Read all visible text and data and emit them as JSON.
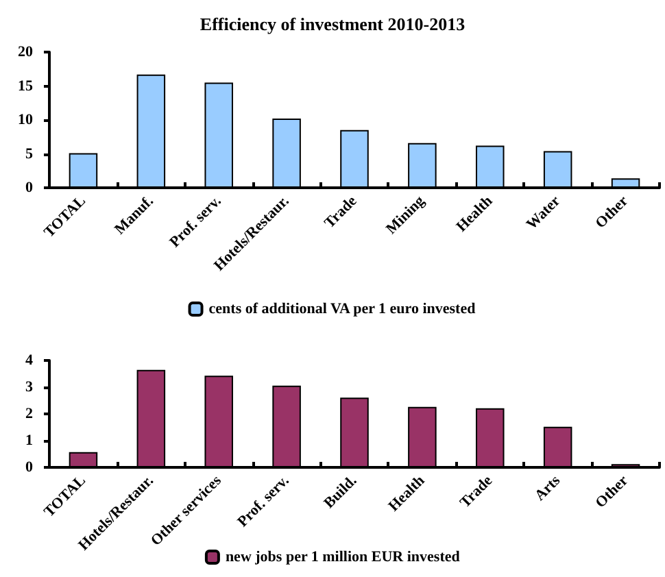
{
  "chart_data": [
    {
      "type": "bar",
      "title": "Efficiency of investment 2010-2013",
      "categories": [
        "TOTAL",
        "Manuf.",
        "Prof. serv.",
        "Hotels/Restaur.",
        "Trade",
        "Mining",
        "Health",
        "Water",
        "Other"
      ],
      "series": [
        {
          "name": "cents of additional VA per 1 euro invested",
          "color": "#99ccff",
          "values": [
            5.1,
            16.7,
            15.5,
            10.2,
            8.5,
            6.6,
            6.2,
            5.4,
            1.4
          ]
        }
      ],
      "ylim": [
        0,
        20
      ],
      "yticks": [
        0,
        5,
        10,
        15,
        20
      ],
      "grid": false,
      "legend": "bottom"
    },
    {
      "type": "bar",
      "categories": [
        "TOTAL",
        "Hotels/Restaur.",
        "Other services",
        "Prof. serv.",
        "Build.",
        "Health",
        "Trade",
        "Arts",
        "Other"
      ],
      "series": [
        {
          "name": "new jobs per 1 million EUR invested",
          "color": "#993366",
          "values": [
            0.57,
            3.65,
            3.43,
            3.06,
            2.61,
            2.26,
            2.21,
            1.52,
            0.12
          ]
        }
      ],
      "ylim": [
        0,
        4
      ],
      "yticks": [
        0,
        1,
        2,
        3,
        4
      ],
      "grid": false,
      "legend": "bottom"
    }
  ]
}
